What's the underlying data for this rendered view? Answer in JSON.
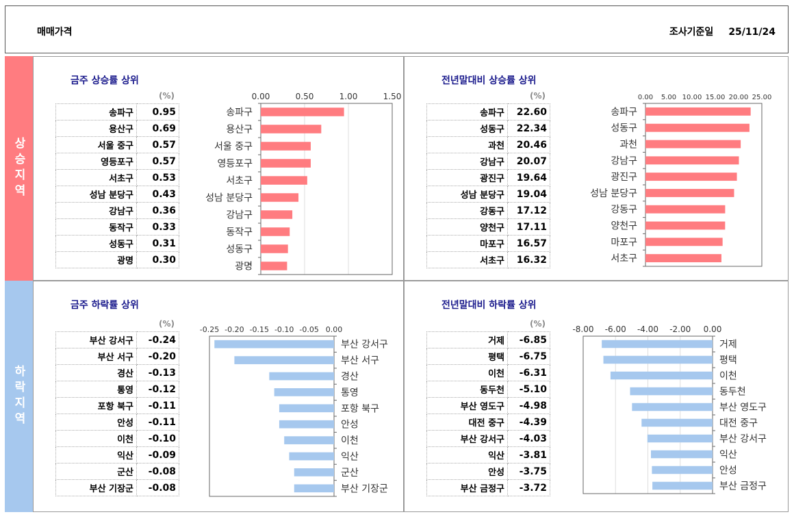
{
  "header": {
    "title": "매매가격",
    "date_label": "조사기준일",
    "date": "25/11/24"
  },
  "bands": {
    "up": "상승지역",
    "down": "하락지역"
  },
  "colors": {
    "up_bar": "#ff7c80",
    "down_bar": "#a6c8ee",
    "band_up": "#ff7c80",
    "band_down": "#a6c8ee"
  },
  "unit": "(%)",
  "chart_data": [
    {
      "type": "bar",
      "title": "금주 상승률 상위",
      "categories": [
        "송파구",
        "용산구",
        "서울 중구",
        "영등포구",
        "서초구",
        "성남 분당구",
        "강남구",
        "동작구",
        "성동구",
        "광명"
      ],
      "values": [
        0.95,
        0.69,
        0.57,
        0.57,
        0.53,
        0.43,
        0.36,
        0.33,
        0.31,
        0.3
      ],
      "display": [
        "0.95",
        "0.69",
        "0.57",
        "0.57",
        "0.53",
        "0.43",
        "0.36",
        "0.33",
        "0.31",
        "0.30"
      ],
      "xlim": [
        0,
        1.5
      ],
      "ticks": [
        "0.00",
        "0.50",
        "1.00",
        "1.50"
      ],
      "tick_values": [
        0,
        0.5,
        1,
        1.5
      ],
      "grid": true
    },
    {
      "type": "bar",
      "title": "전년말대비 상승률 상위",
      "categories": [
        "송파구",
        "성동구",
        "과천",
        "강남구",
        "광진구",
        "성남 분당구",
        "강동구",
        "양천구",
        "마포구",
        "서초구"
      ],
      "values": [
        22.6,
        22.34,
        20.46,
        20.07,
        19.64,
        19.04,
        17.12,
        17.11,
        16.57,
        16.32
      ],
      "display": [
        "22.60",
        "22.34",
        "20.46",
        "20.07",
        "19.64",
        "19.04",
        "17.12",
        "17.11",
        "16.57",
        "16.32"
      ],
      "xlim": [
        0,
        25
      ],
      "ticks": [
        "0.00",
        "5.00",
        "10.00",
        "15.00",
        "20.00",
        "25.00"
      ],
      "tick_values": [
        0,
        5,
        10,
        15,
        20,
        25
      ],
      "grid": false
    },
    {
      "type": "bar",
      "title": "금주 하락률 상위",
      "categories": [
        "부산 강서구",
        "부산 서구",
        "경산",
        "통영",
        "포항 북구",
        "안성",
        "이천",
        "익산",
        "군산",
        "부산 기장군"
      ],
      "values": [
        -0.24,
        -0.2,
        -0.13,
        -0.12,
        -0.11,
        -0.11,
        -0.1,
        -0.09,
        -0.08,
        -0.08
      ],
      "display": [
        "-0.24",
        "-0.20",
        "-0.13",
        "-0.12",
        "-0.11",
        "-0.11",
        "-0.10",
        "-0.09",
        "-0.08",
        "-0.08"
      ],
      "xlim": [
        -0.25,
        0
      ],
      "ticks": [
        "-0.25",
        "-0.20",
        "-0.15",
        "-0.10",
        "-0.05",
        "0.00"
      ],
      "tick_values": [
        -0.25,
        -0.2,
        -0.15,
        -0.1,
        -0.05,
        0
      ],
      "grid": false
    },
    {
      "type": "bar",
      "title": "전년말대비 하락률 상위",
      "categories": [
        "거제",
        "평택",
        "이천",
        "동두천",
        "부산 영도구",
        "대전 중구",
        "부산 강서구",
        "익산",
        "안성",
        "부산 금정구"
      ],
      "values": [
        -6.85,
        -6.75,
        -6.31,
        -5.1,
        -4.98,
        -4.39,
        -4.03,
        -3.81,
        -3.75,
        -3.72
      ],
      "display": [
        "-6.85",
        "-6.75",
        "-6.31",
        "-5.10",
        "-4.98",
        "-4.39",
        "-4.03",
        "-3.81",
        "-3.75",
        "-3.72"
      ],
      "xlim": [
        -8,
        0
      ],
      "ticks": [
        "-8.00",
        "-6.00",
        "-4.00",
        "-2.00",
        "0.00"
      ],
      "tick_values": [
        -8,
        -6,
        -4,
        -2,
        0
      ],
      "grid": true
    }
  ]
}
